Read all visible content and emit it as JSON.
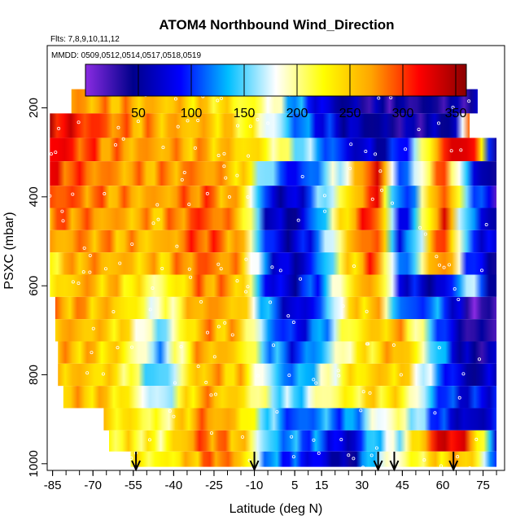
{
  "chart_data": {
    "type": "heatmap",
    "title": "ATOM4 Northbound Wind_Direction",
    "flights_note": "Flts: 7,8,9,10,11,12",
    "dates_note": "MMDD: 0509,0512,0514,0517,0518,0519",
    "xlabel": "Latitude (deg N)",
    "ylabel": "PSXC (mbar)",
    "xlim": [
      -87,
      83
    ],
    "ylim": [
      1015,
      60
    ],
    "y_reversed": true,
    "x_ticks": [
      -85,
      -70,
      -55,
      -40,
      -25,
      -10,
      5,
      15,
      30,
      45,
      60,
      75
    ],
    "x_ticks_labeled": [
      -85,
      -70,
      -55,
      -40,
      -25,
      -10,
      5,
      15,
      30,
      45,
      60,
      75
    ],
    "y_ticks": [
      200,
      400,
      600,
      800,
      1000
    ],
    "colorbar": {
      "range": [
        0,
        360
      ],
      "ticks": [
        50,
        100,
        150,
        200,
        250,
        300,
        350
      ],
      "colors": [
        "#8a2be2",
        "#00008b",
        "#0000ff",
        "#00bfff",
        "#ffffff",
        "#ffff00",
        "#ffa500",
        "#ff0000",
        "#8b0000"
      ]
    },
    "arrow_latitudes": [
      -54,
      -10,
      36,
      42,
      64
    ],
    "series": [
      {
        "name": "",
        "pressure": 180,
        "lat_range": [
          -78,
          73
        ],
        "x": [
          -78,
          -60,
          -40,
          -20,
          -5,
          0,
          5,
          10,
          20,
          30,
          45,
          60,
          73
        ],
        "values": [
          270,
          265,
          255,
          235,
          200,
          170,
          130,
          100,
          60,
          45,
          40,
          40,
          45
        ]
      },
      {
        "name": "",
        "pressure": 245,
        "lat_range": [
          -86,
          70
        ],
        "x": [
          -86,
          -70,
          -55,
          -40,
          -25,
          -15,
          -5,
          5,
          20,
          30,
          40,
          55,
          65,
          70
        ],
        "values": [
          330,
          300,
          270,
          262,
          255,
          235,
          185,
          125,
          75,
          55,
          45,
          50,
          60,
          290
        ]
      },
      {
        "name": "",
        "pressure": 290,
        "lat_range": [
          -86,
          80
        ],
        "x": [
          -86,
          -75,
          -60,
          -45,
          -25,
          -10,
          0,
          10,
          25,
          35,
          45,
          60,
          70,
          80
        ],
        "values": [
          325,
          300,
          270,
          268,
          260,
          240,
          200,
          150,
          80,
          60,
          90,
          300,
          350,
          40
        ]
      },
      {
        "name": "",
        "pressure": 350,
        "lat_range": [
          -86,
          80
        ],
        "x": [
          -86,
          -75,
          -60,
          -45,
          -30,
          -15,
          -5,
          5,
          15,
          25,
          35,
          45,
          60,
          70,
          80
        ],
        "values": [
          310,
          290,
          270,
          268,
          280,
          250,
          150,
          80,
          140,
          200,
          340,
          90,
          300,
          100,
          30
        ]
      },
      {
        "name": "",
        "pressure": 400,
        "lat_range": [
          -86,
          80
        ],
        "x": [
          -86,
          -75,
          -60,
          -45,
          -30,
          -15,
          -5,
          5,
          15,
          25,
          35,
          45,
          60,
          70,
          80
        ],
        "values": [
          300,
          285,
          270,
          265,
          290,
          255,
          80,
          60,
          150,
          230,
          320,
          70,
          310,
          140,
          40
        ]
      },
      {
        "name": "",
        "pressure": 450,
        "lat_range": [
          -86,
          80
        ],
        "x": [
          -86,
          -75,
          -60,
          -45,
          -30,
          -15,
          -5,
          5,
          15,
          25,
          35,
          45,
          60,
          70,
          80
        ],
        "values": [
          280,
          280,
          265,
          260,
          300,
          260,
          70,
          50,
          140,
          260,
          320,
          60,
          320,
          120,
          50
        ]
      },
      {
        "name": "",
        "pressure": 500,
        "lat_range": [
          -86,
          80
        ],
        "x": [
          -86,
          -75,
          -60,
          -45,
          -30,
          -15,
          -5,
          5,
          15,
          25,
          35,
          45,
          60,
          70,
          80
        ],
        "values": [
          260,
          275,
          265,
          255,
          300,
          265,
          90,
          60,
          130,
          250,
          310,
          70,
          320,
          110,
          60
        ]
      },
      {
        "name": "",
        "pressure": 550,
        "lat_range": [
          -86,
          80
        ],
        "x": [
          -86,
          -75,
          -60,
          -45,
          -30,
          -15,
          -5,
          5,
          15,
          25,
          35,
          45,
          60,
          70,
          80
        ],
        "values": [
          230,
          270,
          260,
          250,
          290,
          265,
          100,
          55,
          120,
          240,
          300,
          90,
          310,
          100,
          45
        ]
      },
      {
        "name": "",
        "pressure": 600,
        "lat_range": [
          -86,
          80
        ],
        "x": [
          -86,
          -75,
          -60,
          -45,
          -30,
          -15,
          -5,
          5,
          15,
          25,
          35,
          45,
          60,
          70,
          80
        ],
        "values": [
          220,
          265,
          250,
          200,
          280,
          260,
          80,
          70,
          120,
          230,
          280,
          80,
          60,
          180,
          30
        ]
      },
      {
        "name": "",
        "pressure": 650,
        "lat_range": [
          -84,
          80
        ],
        "x": [
          -84,
          -75,
          -60,
          -45,
          -30,
          -15,
          -5,
          5,
          15,
          25,
          35,
          45,
          60,
          70,
          80
        ],
        "values": [
          270,
          265,
          250,
          180,
          275,
          255,
          120,
          60,
          110,
          230,
          270,
          100,
          120,
          20,
          25
        ]
      },
      {
        "name": "",
        "pressure": 700,
        "lat_range": [
          -84,
          80
        ],
        "x": [
          -84,
          -75,
          -60,
          -45,
          -30,
          -15,
          -5,
          5,
          15,
          25,
          35,
          45,
          60,
          70,
          80
        ],
        "values": [
          265,
          260,
          245,
          150,
          270,
          250,
          130,
          80,
          120,
          220,
          250,
          260,
          100,
          30,
          40
        ]
      },
      {
        "name": "",
        "pressure": 750,
        "lat_range": [
          -83,
          80
        ],
        "x": [
          -83,
          -75,
          -60,
          -45,
          -30,
          -15,
          -5,
          5,
          15,
          25,
          35,
          45,
          60,
          70,
          80
        ],
        "values": [
          260,
          258,
          240,
          140,
          270,
          245,
          140,
          90,
          140,
          210,
          240,
          270,
          120,
          40,
          60
        ]
      },
      {
        "name": "",
        "pressure": 800,
        "lat_range": [
          -83,
          80
        ],
        "x": [
          -83,
          -75,
          -60,
          -45,
          -30,
          -15,
          -5,
          5,
          15,
          25,
          35,
          45,
          60,
          70,
          80
        ],
        "values": [
          260,
          255,
          235,
          130,
          265,
          250,
          160,
          110,
          170,
          230,
          250,
          250,
          110,
          50,
          70
        ]
      },
      {
        "name": "",
        "pressure": 850,
        "lat_range": [
          -81,
          80
        ],
        "x": [
          -81,
          -70,
          -60,
          -45,
          -30,
          -15,
          -5,
          5,
          15,
          25,
          35,
          45,
          60,
          70,
          80
        ],
        "values": [
          255,
          255,
          240,
          150,
          270,
          240,
          180,
          140,
          200,
          220,
          240,
          230,
          100,
          80,
          90
        ]
      },
      {
        "name": "",
        "pressure": 900,
        "lat_range": [
          -66,
          80
        ],
        "x": [
          -66,
          -55,
          -45,
          -30,
          -15,
          -5,
          5,
          15,
          25,
          35,
          45,
          60,
          70,
          80
        ],
        "values": [
          240,
          235,
          200,
          280,
          250,
          150,
          100,
          130,
          110,
          180,
          200,
          90,
          60,
          80
        ]
      },
      {
        "name": "",
        "pressure": 950,
        "lat_range": [
          -64,
          80
        ],
        "x": [
          -64,
          -55,
          -45,
          -30,
          -15,
          -5,
          5,
          15,
          25,
          35,
          45,
          60,
          70,
          80
        ],
        "values": [
          220,
          230,
          210,
          290,
          260,
          140,
          120,
          110,
          60,
          150,
          180,
          340,
          300,
          90
        ]
      },
      {
        "name": "",
        "pressure": 995,
        "lat_range": [
          -56,
          80
        ],
        "x": [
          -56,
          -45,
          -35,
          -25,
          -15,
          -5,
          5,
          15,
          25,
          35,
          45,
          60,
          70,
          80
        ],
        "values": [
          230,
          220,
          250,
          290,
          260,
          120,
          100,
          80,
          40,
          160,
          200,
          250,
          260,
          100
        ]
      }
    ]
  }
}
